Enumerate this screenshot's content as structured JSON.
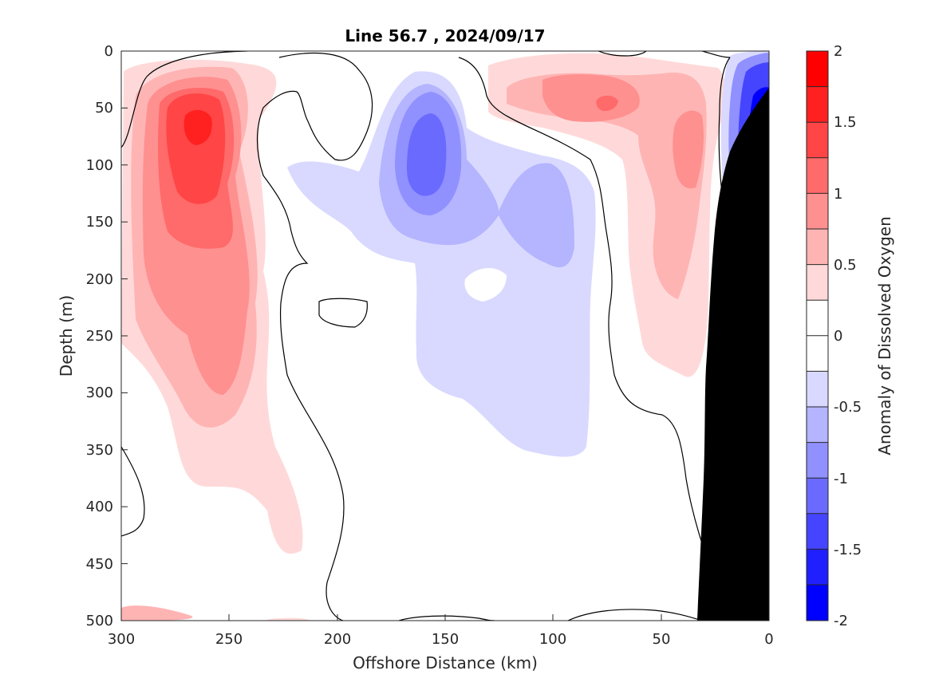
{
  "chart_data": {
    "type": "heatmap",
    "title": "Line 56.7 , 2024/09/17",
    "xlabel": "Offshore Distance (km)",
    "ylabel": "Depth (m)",
    "xlim": [
      300,
      0
    ],
    "ylim": [
      0,
      500
    ],
    "y_reversed": true,
    "x_reversed": true,
    "x_ticks": [
      "300",
      "250",
      "200",
      "150",
      "100",
      "50",
      "0"
    ],
    "y_ticks": [
      "0",
      "50",
      "100",
      "150",
      "200",
      "250",
      "300",
      "350",
      "400",
      "450",
      "500"
    ],
    "colorbar": {
      "label": "Anomaly of Dissolved Oxygen",
      "range": [
        -2,
        2
      ],
      "ticks": [
        "2",
        "1.5",
        "1",
        "0.5",
        "0",
        "-0.5",
        "-1",
        "-1.5",
        "-2"
      ],
      "levels": [
        -2,
        -1.75,
        -1.5,
        -1.25,
        -1,
        -0.75,
        -0.5,
        -0.25,
        0,
        0.25,
        0.5,
        0.75,
        1,
        1.25,
        1.5,
        1.75,
        2
      ],
      "colors": [
        "#0000ff",
        "#2020ff",
        "#4545ff",
        "#6a6aff",
        "#9090ff",
        "#b4b4ff",
        "#d9d9ff",
        "#ffffff",
        "#ffffff",
        "#ffd9d9",
        "#ffb4b4",
        "#ff9090",
        "#ff6a6a",
        "#ff4545",
        "#ff2020",
        "#ff0000"
      ]
    },
    "regions": [
      {
        "name": "positive-core-offshore",
        "center": [
          265,
          70
        ],
        "peak": 1.7
      },
      {
        "name": "positive-band-offshore",
        "x_range": [
          230,
          300
        ],
        "depth_range": [
          20,
          460
        ],
        "value": 0.5
      },
      {
        "name": "negative-core-mid",
        "center": [
          157,
          110
        ],
        "peak": -0.9
      },
      {
        "name": "negative-lobe-mid",
        "center": [
          100,
          150
        ],
        "peak": -0.6
      },
      {
        "name": "negative-band-mid",
        "x_range": [
          80,
          225
        ],
        "depth_range": [
          20,
          355
        ],
        "value": -0.4
      },
      {
        "name": "positive-core-nearshore",
        "center": [
          75,
          45
        ],
        "peak": 0.9
      },
      {
        "name": "positive-band-nearshore",
        "x_range": [
          30,
          130
        ],
        "depth_range": [
          15,
          290
        ],
        "value": 0.5
      },
      {
        "name": "negative-core-coastal",
        "center": [
          8,
          90
        ],
        "peak": -1.8
      }
    ],
    "bathymetry": {
      "color": "#000000",
      "description": "seafloor / land mask near 0 km"
    }
  }
}
